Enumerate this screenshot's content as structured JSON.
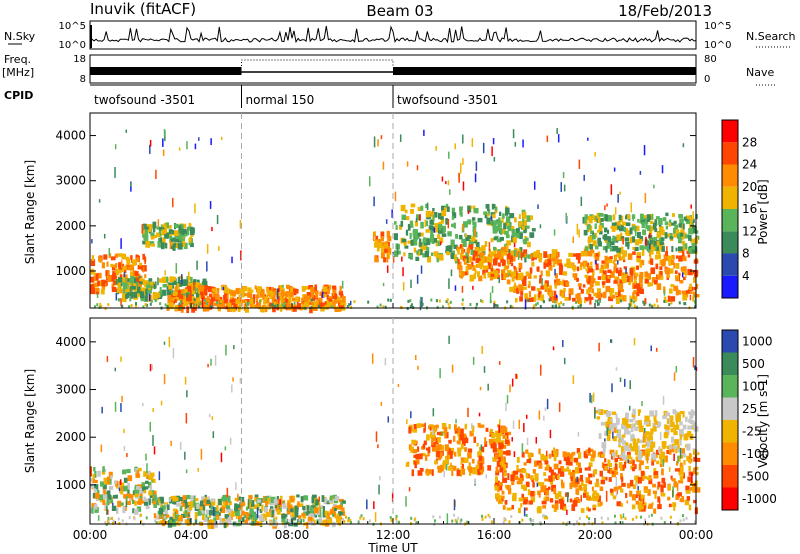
{
  "header": {
    "station": "Inuvik (fitACF)",
    "beam": "Beam 03",
    "date": "18/Feb/2013"
  },
  "sky_panel": {
    "left_label": "N.Sky",
    "right_label": "N.Search",
    "left_ticks": [
      "10^5",
      "10^0"
    ],
    "right_ticks": [
      "10^5",
      "10^0"
    ]
  },
  "freq_panel": {
    "left_label": "Freq.",
    "left_unit": "[MHz]",
    "right_label": "Nave",
    "left_ticks": [
      "18",
      "8"
    ],
    "right_ticks": [
      "80",
      "0"
    ]
  },
  "cpid": {
    "label": "CPID",
    "segments": [
      {
        "name": "twofsound -3501",
        "start_hour": 0,
        "end_hour": 6
      },
      {
        "name": "normal 150",
        "start_hour": 6,
        "end_hour": 12
      },
      {
        "name": "twofsound -3501",
        "start_hour": 12,
        "end_hour": 24
      }
    ]
  },
  "x_axis": {
    "label": "Time UT",
    "ticks": [
      "00:00",
      "04:00",
      "08:00",
      "12:00",
      "16:00",
      "20:00",
      "00:00"
    ]
  },
  "colors": {
    "power_scale": [
      "#1a1aff",
      "#2a4ab0",
      "#3a8a5a",
      "#5ab45a",
      "#f0b400",
      "#ff8c00",
      "#ff4500",
      "#ff0000"
    ],
    "velocity_scale": [
      "#ff0000",
      "#ff4500",
      "#ff8c00",
      "#f0b400",
      "#c8c8c8",
      "#5ab45a",
      "#3a8a5a",
      "#2a4ab0"
    ]
  },
  "chart_data": [
    {
      "type": "heatmap",
      "title": "",
      "xlabel": "Time UT",
      "ylabel": "Slant Range [km]",
      "xlim": [
        0,
        24
      ],
      "ylim": [
        180,
        4500
      ],
      "yticks": [
        "1000",
        "2000",
        "3000",
        "4000"
      ],
      "colorbar": {
        "label": "Power [dB]",
        "ticks": [
          "28",
          "24",
          "20",
          "16",
          "12",
          "8",
          "4"
        ],
        "range": [
          0,
          30
        ]
      },
      "echo_regions": [
        {
          "t": [
            0,
            2.2
          ],
          "range": [
            600,
            1400
          ],
          "level": "strong"
        },
        {
          "t": [
            1.0,
            4.5
          ],
          "range": [
            450,
            900
          ],
          "level": "medium"
        },
        {
          "t": [
            3.0,
            10.0
          ],
          "range": [
            200,
            700
          ],
          "level": "strong"
        },
        {
          "t": [
            2.0,
            4.0
          ],
          "range": [
            1600,
            2100
          ],
          "level": "medium"
        },
        {
          "t": [
            11.2,
            11.8
          ],
          "range": [
            1300,
            1900
          ],
          "level": "strong"
        },
        {
          "t": [
            12.0,
            17.5
          ],
          "range": [
            1300,
            2500
          ],
          "level": "medium"
        },
        {
          "t": [
            14.5,
            16.5
          ],
          "range": [
            900,
            1600
          ],
          "level": "strong"
        },
        {
          "t": [
            16.5,
            24.0
          ],
          "range": [
            400,
            1500
          ],
          "level": "strong"
        },
        {
          "t": [
            19.5,
            24.0
          ],
          "range": [
            1500,
            2300
          ],
          "level": "medium"
        }
      ]
    },
    {
      "type": "heatmap",
      "title": "",
      "xlabel": "Time UT",
      "ylabel": "Slant Range [km]",
      "xlim": [
        0,
        24
      ],
      "ylim": [
        180,
        4500
      ],
      "yticks": [
        "1000",
        "2000",
        "3000",
        "4000"
      ],
      "colorbar": {
        "label": "Velocity [m s-1]",
        "ticks": [
          "1000",
          "500",
          "100",
          "25",
          "-25",
          "-100",
          "-500",
          "-1000"
        ],
        "range": [
          -1000,
          1000
        ]
      },
      "echo_regions": [
        {
          "t": [
            0,
            2.5
          ],
          "range": [
            500,
            1400
          ],
          "level": "mixed"
        },
        {
          "t": [
            2.5,
            10.0
          ],
          "range": [
            200,
            800
          ],
          "level": "mixed"
        },
        {
          "t": [
            12.5,
            16.5
          ],
          "range": [
            1300,
            2300
          ],
          "level": "negative"
        },
        {
          "t": [
            16.0,
            24.0
          ],
          "range": [
            500,
            1800
          ],
          "level": "negative"
        },
        {
          "t": [
            20.0,
            24.0
          ],
          "range": [
            1600,
            2600
          ],
          "level": "near-zero"
        }
      ]
    }
  ]
}
